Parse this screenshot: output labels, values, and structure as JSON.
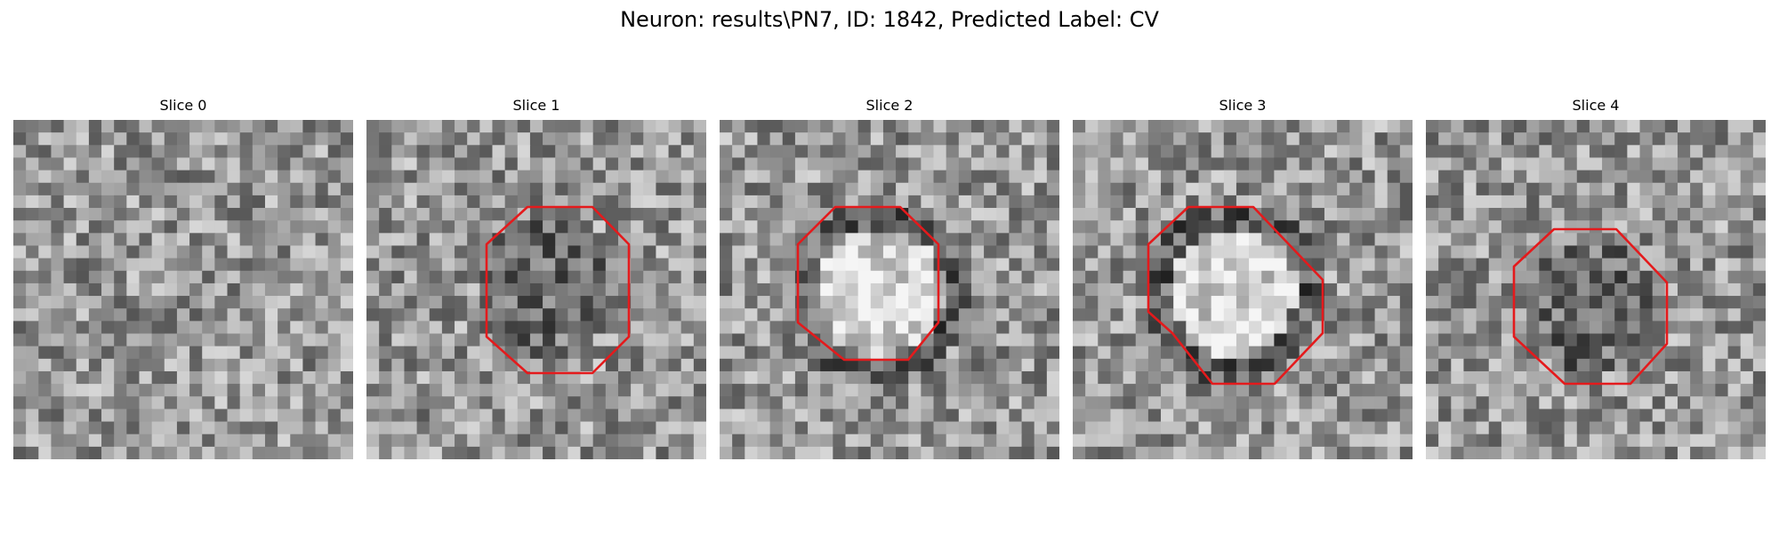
{
  "figure": {
    "title": "Neuron: results\\PN7, ID: 1842, Predicted Label: CV"
  },
  "panels": [
    {
      "title": "Slice 0",
      "outline": false,
      "spot": "none",
      "seed": 11
    },
    {
      "title": "Slice 1",
      "outline": true,
      "spot": "dark",
      "seed": 23
    },
    {
      "title": "Slice 2",
      "outline": true,
      "spot": "bright",
      "seed": 37
    },
    {
      "title": "Slice 3",
      "outline": true,
      "spot": "bright",
      "seed": 51
    },
    {
      "title": "Slice 4",
      "outline": true,
      "spot": "dark",
      "seed": 67
    }
  ],
  "colors": {
    "outline": "#e41a1c"
  }
}
